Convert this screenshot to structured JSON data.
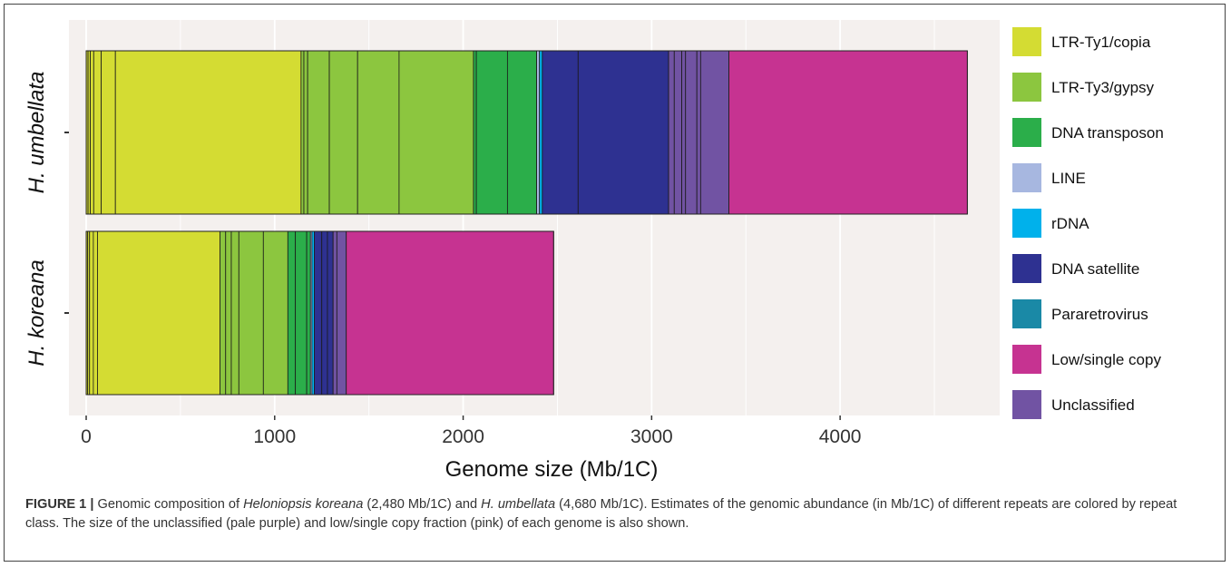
{
  "chart_data": {
    "type": "bar",
    "orientation": "horizontal",
    "stacked": true,
    "xlabel": "Genome size (Mb/1C)",
    "ylabel": "",
    "xlim": [
      0,
      4800
    ],
    "xticks": [
      0,
      1000,
      2000,
      3000,
      4000
    ],
    "grid": true,
    "legend_position": "right",
    "categories": [
      "H. umbellata",
      "H. koreana"
    ],
    "classes": [
      {
        "name": "LTR-Ty1/copia",
        "color": "#d4dc33"
      },
      {
        "name": "LTR-Ty3/gypsy",
        "color": "#8cc63f"
      },
      {
        "name": "DNA transposon",
        "color": "#2bae4a"
      },
      {
        "name": "LINE",
        "color": "#a7b7e0"
      },
      {
        "name": "rDNA",
        "color": "#00b1eb"
      },
      {
        "name": "DNA satellite",
        "color": "#2e3191"
      },
      {
        "name": "Pararetrovirus",
        "color": "#1a89a6"
      },
      {
        "name": "Low/single copy",
        "color": "#c63391"
      },
      {
        "name": "Unclassified",
        "color": "#7153a3"
      }
    ],
    "bars": [
      {
        "name": "H. umbellata",
        "total": 4680,
        "segments": [
          {
            "class": "LTR-Ty1/copia",
            "value": 10
          },
          {
            "class": "LTR-Ty1/copia",
            "value": 12
          },
          {
            "class": "LTR-Ty1/copia",
            "value": 18
          },
          {
            "class": "LTR-Ty1/copia",
            "value": 40
          },
          {
            "class": "LTR-Ty1/copia",
            "value": 75
          },
          {
            "class": "LTR-Ty1/copia",
            "value": 985
          },
          {
            "class": "LTR-Ty3/gypsy",
            "value": 15
          },
          {
            "class": "LTR-Ty3/gypsy",
            "value": 20
          },
          {
            "class": "LTR-Ty3/gypsy",
            "value": 115
          },
          {
            "class": "LTR-Ty3/gypsy",
            "value": 150
          },
          {
            "class": "LTR-Ty3/gypsy",
            "value": 220
          },
          {
            "class": "LTR-Ty3/gypsy",
            "value": 395
          },
          {
            "class": "DNA transposon",
            "value": 15
          },
          {
            "class": "DNA transposon",
            "value": 165
          },
          {
            "class": "DNA transposon",
            "value": 155
          },
          {
            "class": "LINE",
            "value": 15
          },
          {
            "class": "rDNA",
            "value": 15
          },
          {
            "class": "DNA satellite",
            "value": 190
          },
          {
            "class": "DNA satellite",
            "value": 480
          },
          {
            "class": "Unclassified",
            "value": 30
          },
          {
            "class": "Unclassified",
            "value": 40
          },
          {
            "class": "Unclassified",
            "value": 20
          },
          {
            "class": "Unclassified",
            "value": 60
          },
          {
            "class": "Unclassified",
            "value": 20
          },
          {
            "class": "Unclassified",
            "value": 150
          },
          {
            "class": "Low/single copy",
            "value": 1265
          }
        ]
      },
      {
        "name": "H. koreana",
        "total": 2480,
        "segments": [
          {
            "class": "LTR-Ty1/copia",
            "value": 8
          },
          {
            "class": "LTR-Ty1/copia",
            "value": 10
          },
          {
            "class": "LTR-Ty1/copia",
            "value": 20
          },
          {
            "class": "LTR-Ty1/copia",
            "value": 22
          },
          {
            "class": "LTR-Ty1/copia",
            "value": 650
          },
          {
            "class": "LTR-Ty3/gypsy",
            "value": 30
          },
          {
            "class": "LTR-Ty3/gypsy",
            "value": 30
          },
          {
            "class": "LTR-Ty3/gypsy",
            "value": 40
          },
          {
            "class": "LTR-Ty3/gypsy",
            "value": 130
          },
          {
            "class": "LTR-Ty3/gypsy",
            "value": 130
          },
          {
            "class": "DNA transposon",
            "value": 40
          },
          {
            "class": "DNA transposon",
            "value": 60
          },
          {
            "class": "DNA transposon",
            "value": 20
          },
          {
            "class": "LINE",
            "value": 8
          },
          {
            "class": "rDNA",
            "value": 12
          },
          {
            "class": "DNA satellite",
            "value": 40
          },
          {
            "class": "DNA satellite",
            "value": 30
          },
          {
            "class": "DNA satellite",
            "value": 30
          },
          {
            "class": "Unclassified",
            "value": 20
          },
          {
            "class": "Unclassified",
            "value": 50
          },
          {
            "class": "Low/single copy",
            "value": 1100
          }
        ]
      }
    ]
  },
  "caption": {
    "lead": "FIGURE 1 |",
    "part1": " Genomic composition of ",
    "species1": "Heloniopsis koreana",
    "part2": " (2,480 Mb/1C) and ",
    "species2": "H. umbellata",
    "part3": " (4,680 Mb/1C). Estimates of the genomic abundance (in Mb/1C) of different repeats are colored by repeat class. The size of the unclassified (pale purple) and low/single copy fraction (pink) of each genome is also shown."
  }
}
